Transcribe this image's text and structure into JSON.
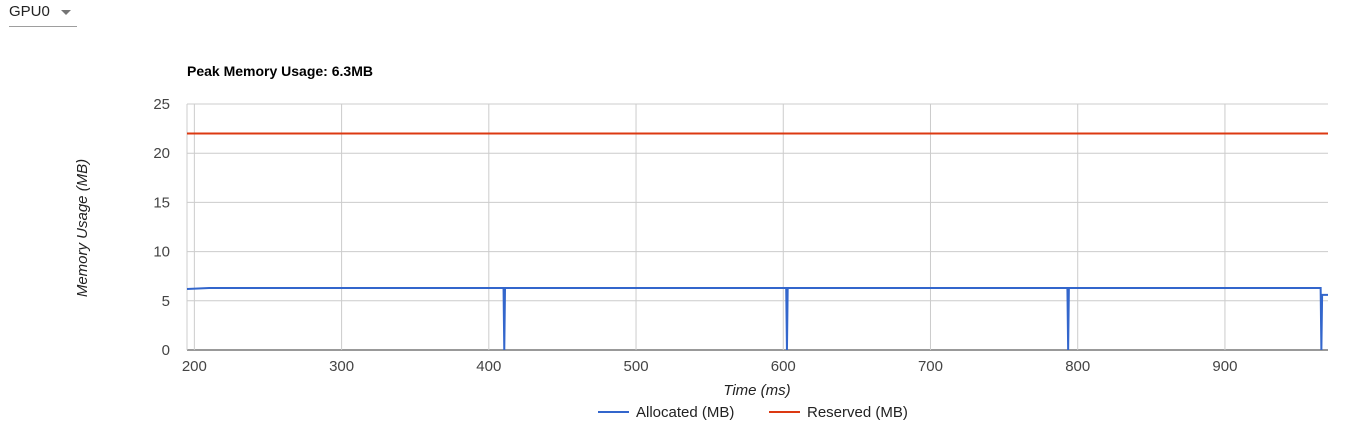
{
  "device_selector": {
    "value": "GPU0"
  },
  "chart_data": {
    "type": "line",
    "title": "Peak Memory Usage: 6.3MB",
    "xlabel": "Time (ms)",
    "ylabel": "Memory Usage (MB)",
    "xlim": [
      195,
      970
    ],
    "ylim": [
      0,
      25
    ],
    "x_ticks": [
      200,
      300,
      400,
      500,
      600,
      700,
      800,
      900
    ],
    "y_ticks": [
      0,
      5,
      10,
      15,
      20,
      25
    ],
    "grid": true,
    "legend_position": "bottom",
    "series": [
      {
        "name": "Allocated (MB)",
        "color": "#3366cc",
        "points": [
          [
            195,
            6.2
          ],
          [
            210,
            6.3
          ],
          [
            410,
            6.3
          ],
          [
            410.5,
            0
          ],
          [
            411,
            6.3
          ],
          [
            602,
            6.3
          ],
          [
            602.5,
            0
          ],
          [
            603,
            6.3
          ],
          [
            793,
            6.3
          ],
          [
            793.5,
            0
          ],
          [
            794,
            6.3
          ],
          [
            965,
            6.3
          ],
          [
            965.5,
            0
          ],
          [
            966,
            5.6
          ],
          [
            970,
            5.6
          ]
        ]
      },
      {
        "name": "Reserved (MB)",
        "color": "#dc3912",
        "points": [
          [
            195,
            22
          ],
          [
            970,
            22
          ]
        ]
      }
    ]
  }
}
